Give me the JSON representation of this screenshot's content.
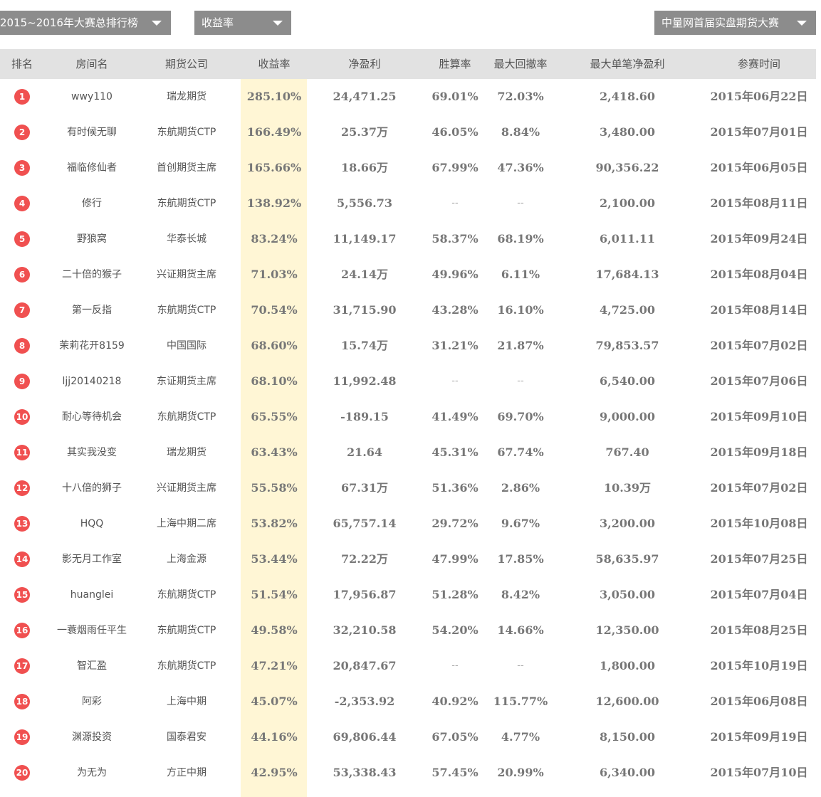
{
  "filters": {
    "period": "2015~2016年大赛总排行榜",
    "metric": "收益率",
    "contest": "中量网首届实盘期货大赛"
  },
  "columns": [
    "排名",
    "房间名",
    "期货公司",
    "收益率",
    "净盈利",
    "胜算率",
    "最大回撤率",
    "最大单笔净盈利",
    "参赛时间"
  ],
  "rows": [
    {
      "rank": "1",
      "name": "wwy110",
      "company": "瑞龙期货",
      "yield": "285.10%",
      "profit": "24,471.25",
      "win": "69.01%",
      "drawdown": "72.03%",
      "max_single": "2,418.60",
      "date": "2015年06月22日"
    },
    {
      "rank": "2",
      "name": "有时候无聊",
      "company": "东航期货CTP",
      "yield": "166.49%",
      "profit": "25.37万",
      "win": "46.05%",
      "drawdown": "8.84%",
      "max_single": "3,480.00",
      "date": "2015年07月01日"
    },
    {
      "rank": "3",
      "name": "福临修仙者",
      "company": "首创期货主席",
      "yield": "165.66%",
      "profit": "18.66万",
      "win": "67.99%",
      "drawdown": "47.36%",
      "max_single": "90,356.22",
      "date": "2015年06月05日"
    },
    {
      "rank": "4",
      "name": "修行",
      "company": "东航期货CTP",
      "yield": "138.92%",
      "profit": "5,556.73",
      "win": "--",
      "drawdown": "--",
      "max_single": "2,100.00",
      "date": "2015年08月11日"
    },
    {
      "rank": "5",
      "name": "野狼窝",
      "company": "华泰长城",
      "yield": "83.24%",
      "profit": "11,149.17",
      "win": "58.37%",
      "drawdown": "68.19%",
      "max_single": "6,011.11",
      "date": "2015年09月24日"
    },
    {
      "rank": "6",
      "name": "二十倍的猴子",
      "company": "兴证期货主席",
      "yield": "71.03%",
      "profit": "24.14万",
      "win": "49.96%",
      "drawdown": "6.11%",
      "max_single": "17,684.13",
      "date": "2015年08月04日"
    },
    {
      "rank": "7",
      "name": "第一反指",
      "company": "东航期货CTP",
      "yield": "70.54%",
      "profit": "31,715.90",
      "win": "43.28%",
      "drawdown": "16.10%",
      "max_single": "4,725.00",
      "date": "2015年08月14日"
    },
    {
      "rank": "8",
      "name": "茉莉花开8159",
      "company": "中国国际",
      "yield": "68.60%",
      "profit": "15.74万",
      "win": "31.21%",
      "drawdown": "21.87%",
      "max_single": "79,853.57",
      "date": "2015年07月02日"
    },
    {
      "rank": "9",
      "name": "ljj20140218",
      "company": "东证期货主席",
      "yield": "68.10%",
      "profit": "11,992.48",
      "win": "--",
      "drawdown": "--",
      "max_single": "6,540.00",
      "date": "2015年07月06日"
    },
    {
      "rank": "10",
      "name": "耐心等待机会",
      "company": "东航期货CTP",
      "yield": "65.55%",
      "profit": "-189.15",
      "win": "41.49%",
      "drawdown": "69.70%",
      "max_single": "9,000.00",
      "date": "2015年09月10日"
    },
    {
      "rank": "11",
      "name": "其实我没变",
      "company": "瑞龙期货",
      "yield": "63.43%",
      "profit": "21.64",
      "win": "45.31%",
      "drawdown": "67.74%",
      "max_single": "767.40",
      "date": "2015年09月18日"
    },
    {
      "rank": "12",
      "name": "十八倍的狮子",
      "company": "兴证期货主席",
      "yield": "55.58%",
      "profit": "67.31万",
      "win": "51.36%",
      "drawdown": "2.86%",
      "max_single": "10.39万",
      "date": "2015年07月02日"
    },
    {
      "rank": "13",
      "name": "HQQ",
      "company": "上海中期二席",
      "yield": "53.82%",
      "profit": "65,757.14",
      "win": "29.72%",
      "drawdown": "9.67%",
      "max_single": "3,200.00",
      "date": "2015年10月08日"
    },
    {
      "rank": "14",
      "name": "影无月工作室",
      "company": "上海金源",
      "yield": "53.44%",
      "profit": "72.22万",
      "win": "47.99%",
      "drawdown": "17.85%",
      "max_single": "58,635.97",
      "date": "2015年07月25日"
    },
    {
      "rank": "15",
      "name": "huanglei",
      "company": "东航期货CTP",
      "yield": "51.54%",
      "profit": "17,956.87",
      "win": "51.28%",
      "drawdown": "8.42%",
      "max_single": "3,050.00",
      "date": "2015年07月04日"
    },
    {
      "rank": "16",
      "name": "一蓑烟雨任平生",
      "company": "东航期货CTP",
      "yield": "49.58%",
      "profit": "32,210.58",
      "win": "54.20%",
      "drawdown": "14.66%",
      "max_single": "12,350.00",
      "date": "2015年08月25日"
    },
    {
      "rank": "17",
      "name": "智汇盈",
      "company": "东航期货CTP",
      "yield": "47.21%",
      "profit": "20,847.67",
      "win": "--",
      "drawdown": "--",
      "max_single": "1,800.00",
      "date": "2015年10月19日"
    },
    {
      "rank": "18",
      "name": "阿彩",
      "company": "上海中期",
      "yield": "45.07%",
      "profit": "-2,353.92",
      "win": "40.92%",
      "drawdown": "115.77%",
      "max_single": "12,600.00",
      "date": "2015年06月08日"
    },
    {
      "rank": "19",
      "name": "渊源投资",
      "company": "国泰君安",
      "yield": "44.16%",
      "profit": "69,806.44",
      "win": "67.05%",
      "drawdown": "4.77%",
      "max_single": "8,150.00",
      "date": "2015年09月19日"
    },
    {
      "rank": "20",
      "name": "为无为",
      "company": "方正中期",
      "yield": "42.95%",
      "profit": "53,338.43",
      "win": "57.45%",
      "drawdown": "20.99%",
      "max_single": "6,340.00",
      "date": "2015年07月10日"
    }
  ]
}
